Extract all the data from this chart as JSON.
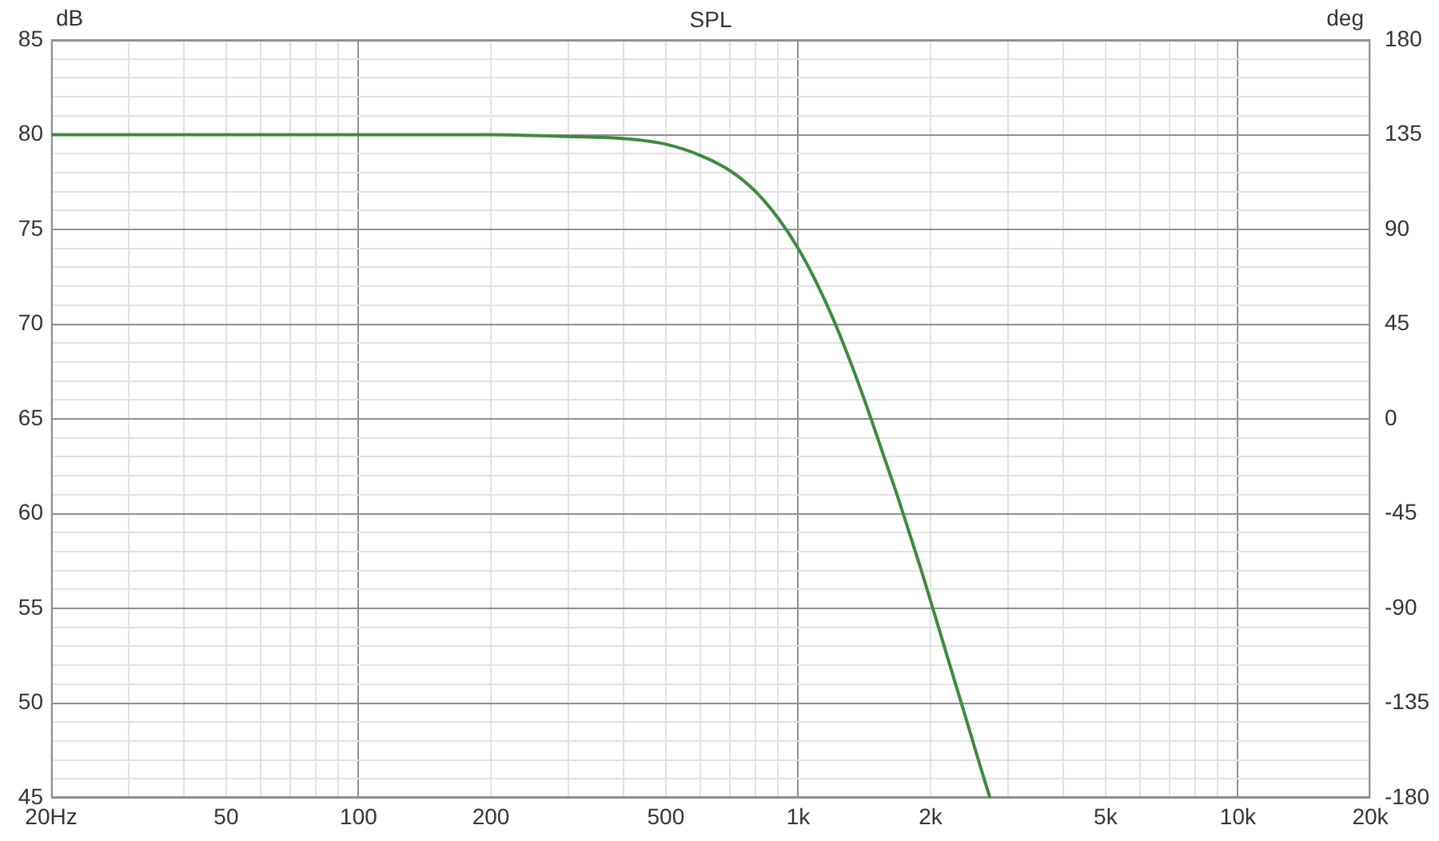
{
  "chart_data": {
    "type": "line",
    "title": "SPL",
    "ylabel": "dB",
    "y2label": "deg",
    "x": [
      20,
      50,
      100,
      200,
      300,
      400,
      500,
      600,
      700,
      800,
      900,
      1000,
      1100,
      1200,
      1300,
      1400,
      1500,
      1600,
      1700,
      1800,
      1900,
      2000,
      2200,
      2400,
      2600,
      2730
    ],
    "series": [
      {
        "color": "#3f8a3f",
        "values": [
          80,
          80,
          80,
          80,
          79.9,
          79.8,
          79.5,
          78.9,
          78.1,
          77.0,
          75.6,
          74.0,
          72.2,
          70.3,
          68.3,
          66.3,
          64.3,
          62.4,
          60.6,
          58.8,
          57.1,
          55.4,
          52.2,
          49.3,
          46.6,
          45.0
        ]
      }
    ],
    "log": "x",
    "grid": true,
    "xlim": [
      20,
      20000
    ],
    "xticks": [
      {
        "value": 20,
        "label": "20Hz"
      },
      {
        "value": 30,
        "label": null
      },
      {
        "value": 40,
        "label": null
      },
      50,
      {
        "value": 60,
        "label": null
      },
      {
        "value": 70,
        "label": null
      },
      {
        "value": 80,
        "label": null
      },
      {
        "value": 90,
        "label": null
      },
      100,
      200,
      {
        "value": 300,
        "label": null
      },
      {
        "value": 400,
        "label": null
      },
      500,
      {
        "value": 600,
        "label": null
      },
      {
        "value": 700,
        "label": null
      },
      {
        "value": 800,
        "label": null
      },
      {
        "value": 900,
        "label": null
      },
      {
        "value": 1000,
        "label": "1k"
      },
      {
        "value": 2000,
        "label": "2k"
      },
      {
        "value": 3000,
        "label": null
      },
      {
        "value": 4000,
        "label": null
      },
      {
        "value": 5000,
        "label": "5k"
      },
      {
        "value": 6000,
        "label": null
      },
      {
        "value": 7000,
        "label": null
      },
      {
        "value": 8000,
        "label": null
      },
      {
        "value": 9000,
        "label": null
      },
      {
        "value": 10000,
        "label": "10k"
      },
      {
        "value": 20000,
        "label": "20k"
      }
    ],
    "ylim": [
      45,
      85
    ],
    "yticks": [
      45,
      {
        "value": 46,
        "label": null
      },
      {
        "value": 47,
        "label": null
      },
      {
        "value": 48,
        "label": null
      },
      {
        "value": 49,
        "label": null
      },
      50,
      {
        "value": 51,
        "label": null
      },
      {
        "value": 52,
        "label": null
      },
      {
        "value": 53,
        "label": null
      },
      {
        "value": 54,
        "label": null
      },
      55,
      {
        "value": 56,
        "label": null
      },
      {
        "value": 57,
        "label": null
      },
      {
        "value": 58,
        "label": null
      },
      {
        "value": 59,
        "label": null
      },
      60,
      {
        "value": 61,
        "label": null
      },
      {
        "value": 62,
        "label": null
      },
      {
        "value": 63,
        "label": null
      },
      {
        "value": 64,
        "label": null
      },
      65,
      {
        "value": 66,
        "label": null
      },
      {
        "value": 67,
        "label": null
      },
      {
        "value": 68,
        "label": null
      },
      {
        "value": 69,
        "label": null
      },
      70,
      {
        "value": 71,
        "label": null
      },
      {
        "value": 72,
        "label": null
      },
      {
        "value": 73,
        "label": null
      },
      {
        "value": 74,
        "label": null
      },
      75,
      {
        "value": 76,
        "label": null
      },
      {
        "value": 77,
        "label": null
      },
      {
        "value": 78,
        "label": null
      },
      {
        "value": 79,
        "label": null
      },
      80,
      {
        "value": 81,
        "label": null
      },
      {
        "value": 82,
        "label": null
      },
      {
        "value": 83,
        "label": null
      },
      {
        "value": 84,
        "label": null
      },
      85
    ],
    "y2lim": [
      -180,
      180
    ],
    "y2ticks": [
      -180,
      -135,
      -90,
      -45,
      0,
      45,
      90,
      135,
      180
    ]
  }
}
